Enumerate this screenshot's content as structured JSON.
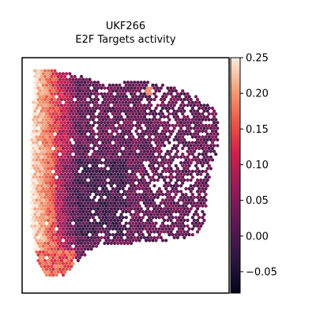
{
  "chart_data": {
    "type": "heatmap",
    "subtype": "spatial-hexbin",
    "title": "UKF266",
    "subtitle": "E2F Targets activity",
    "xlabel": "",
    "ylabel": "",
    "axis_ticks": false,
    "colormap": "rocket",
    "color_range": [
      -0.08,
      0.25
    ],
    "colorbar": {
      "placement": "right",
      "ticks": [
        -0.05,
        0.0,
        0.05,
        0.1,
        0.15,
        0.2,
        0.25
      ],
      "tick_labels": [
        "−0.05",
        "0.00",
        "0.05",
        "0.10",
        "0.15",
        "0.20",
        "0.25"
      ]
    },
    "activity_pattern": {
      "high_activity_region": "left edge",
      "high_activity_values": [
        0.15,
        0.25
      ],
      "low_activity_region": "center-right",
      "low_activity_values": [
        -0.05,
        0.05
      ]
    }
  }
}
